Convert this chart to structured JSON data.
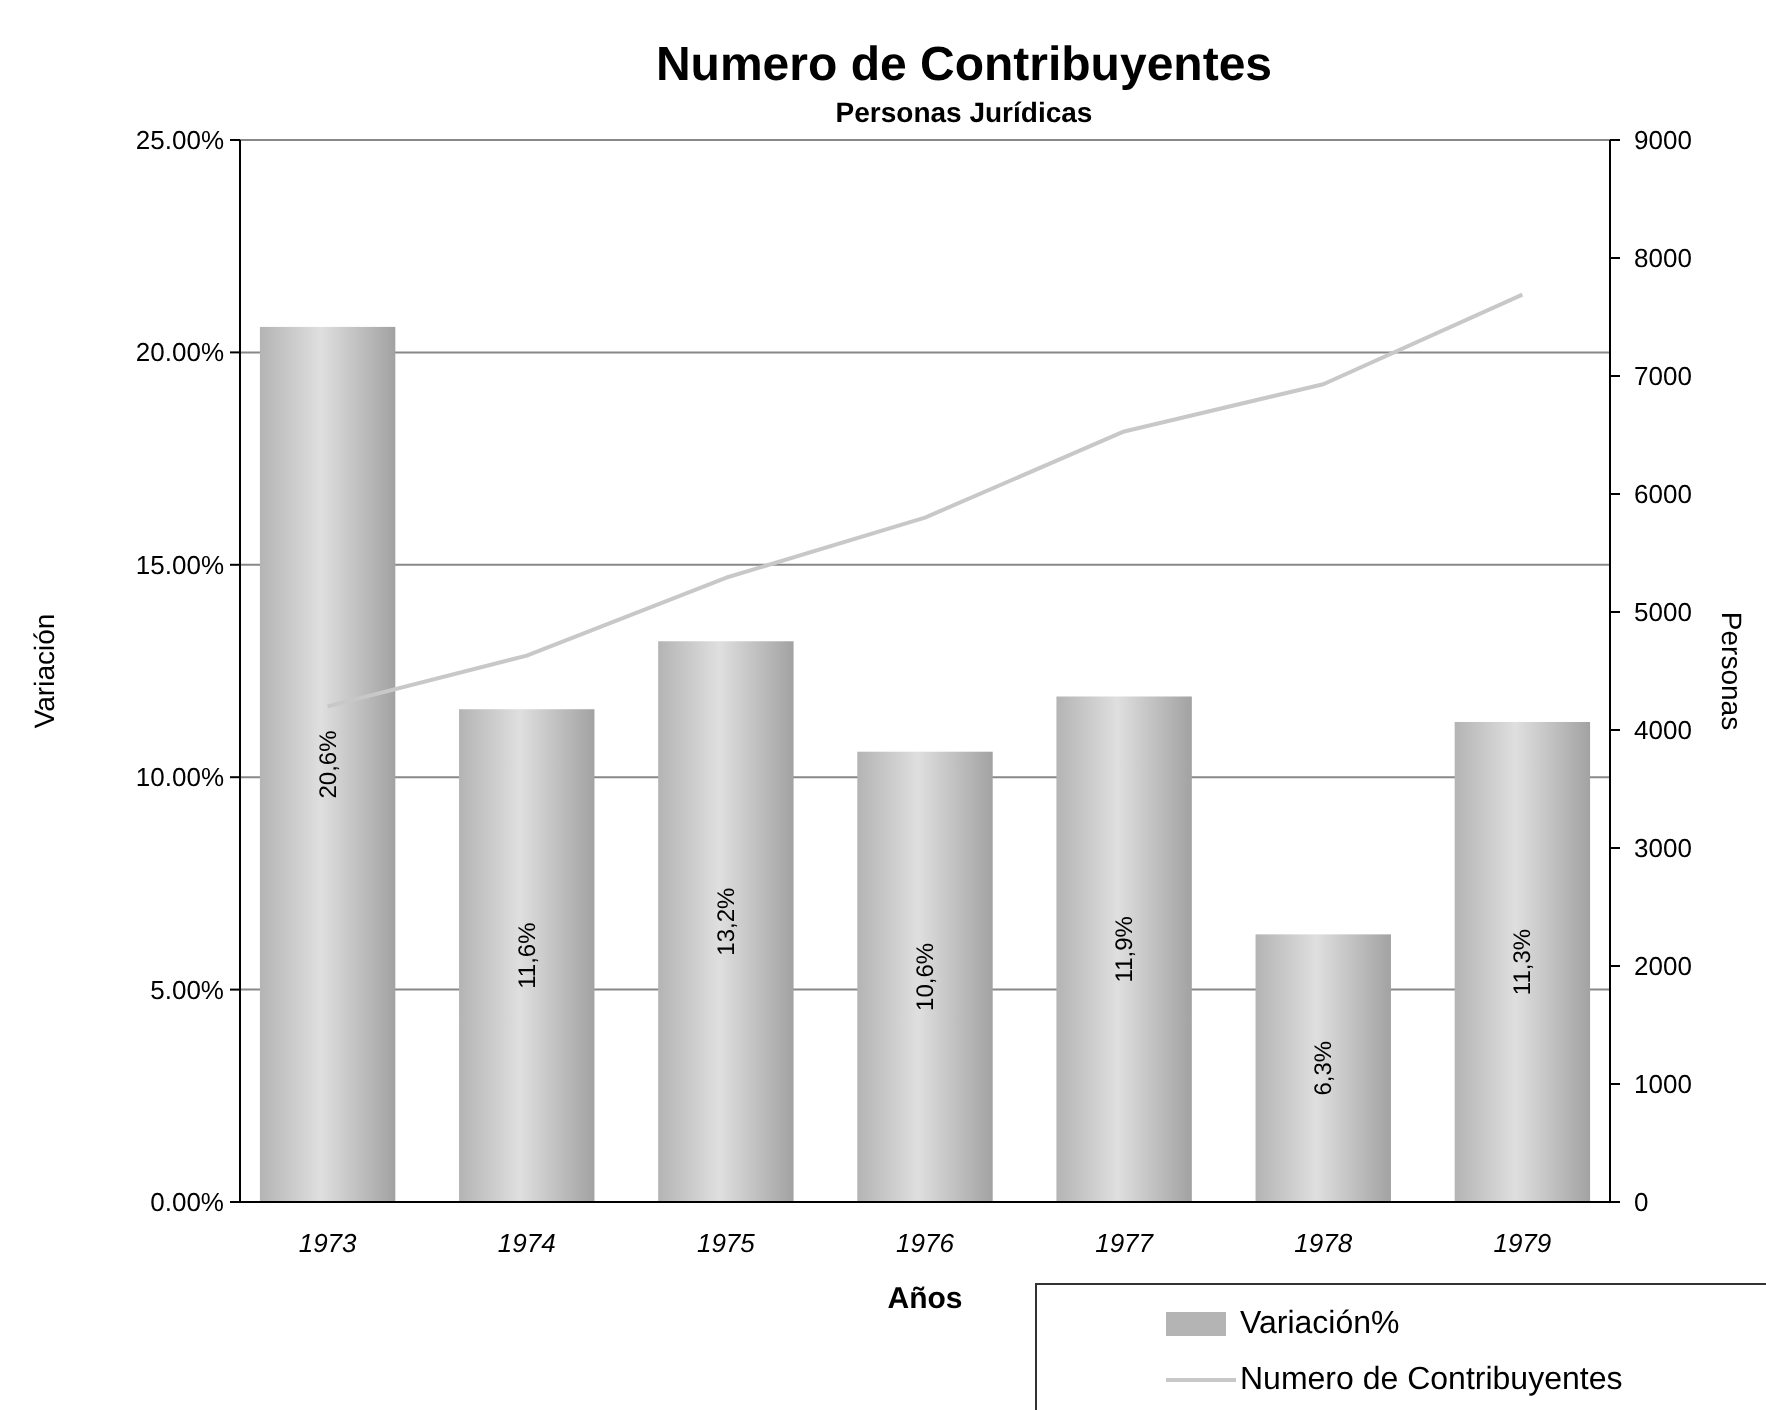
{
  "chart_data": {
    "type": "bar",
    "title": "Numero de Contribuyentes",
    "subtitle": "Personas Jurídicas",
    "xlabel": "Años",
    "ylabel": "Variación",
    "y2label": "Personas",
    "categories": [
      "1973",
      "1974",
      "1975",
      "1976",
      "1977",
      "1978",
      "1979"
    ],
    "series": [
      {
        "name": "Variación%",
        "color": "#b4b4b4",
        "values": [
          20.6,
          11.6,
          13.2,
          10.6,
          11.9,
          6.3,
          11.3
        ],
        "value_labels": [
          "20,6%",
          "11,6%",
          "13,2%",
          "10,6%",
          "11,9%",
          "6,3%",
          "11,3%"
        ]
      },
      {
        "name": "Numero de Contribuyentes",
        "type": "line",
        "axis": "y2",
        "color": "#c8c8c8",
        "values": [
          4200,
          4630,
          5290,
          5800,
          6530,
          6930,
          7690
        ]
      }
    ],
    "ylim": [
      0,
      25
    ],
    "yticks": [
      {
        "value": 0,
        "label": "0.00%"
      },
      {
        "value": 5,
        "label": "5.00%"
      },
      {
        "value": 10,
        "label": "10.00%"
      },
      {
        "value": 15,
        "label": "15.00%"
      },
      {
        "value": 20,
        "label": "20.00%"
      },
      {
        "value": 25,
        "label": "25.00%"
      }
    ],
    "y2lim": [
      0,
      9000
    ],
    "y2ticks": [
      0,
      1000,
      2000,
      3000,
      4000,
      5000,
      6000,
      7000,
      8000,
      9000
    ],
    "grid": "y",
    "legend": "bottom right",
    "line_style": "solid",
    "marker": "none"
  }
}
